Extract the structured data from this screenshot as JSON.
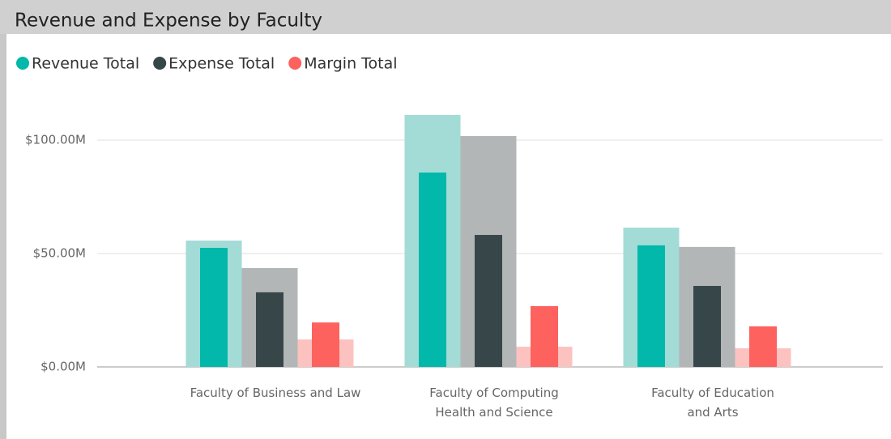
{
  "chart_data": {
    "type": "bar",
    "title": "Revenue and Expense by Faculty",
    "categories": [
      "Faculty of Business and Law",
      "Faculty of Computing Health and Science",
      "Faculty of Education and Arts"
    ],
    "series": [
      {
        "name": "Revenue Total",
        "color": "#01b8aa",
        "background_color": "#a3dbd6",
        "values": [
          52.5,
          85.7,
          53.6
        ],
        "background_values": [
          55.7,
          111.1,
          61.4
        ]
      },
      {
        "name": "Expense Total",
        "color": "#374649",
        "background_color": "#b2b6b7",
        "values": [
          32.9,
          58.2,
          35.7
        ],
        "background_values": [
          43.6,
          101.8,
          52.9
        ]
      },
      {
        "name": "Margin Total",
        "color": "#fd625e",
        "background_color": "#fcc2c0",
        "values": [
          19.6,
          26.8,
          17.9
        ],
        "background_values": [
          12.1,
          8.9,
          8.2
        ]
      }
    ],
    "ylim": [
      0,
      115
    ],
    "yticks": [
      {
        "value": 0,
        "label": "$0.00M"
      },
      {
        "value": 50,
        "label": "$50.00M"
      },
      {
        "value": 100,
        "label": "$100.00M"
      }
    ],
    "grid": true
  }
}
